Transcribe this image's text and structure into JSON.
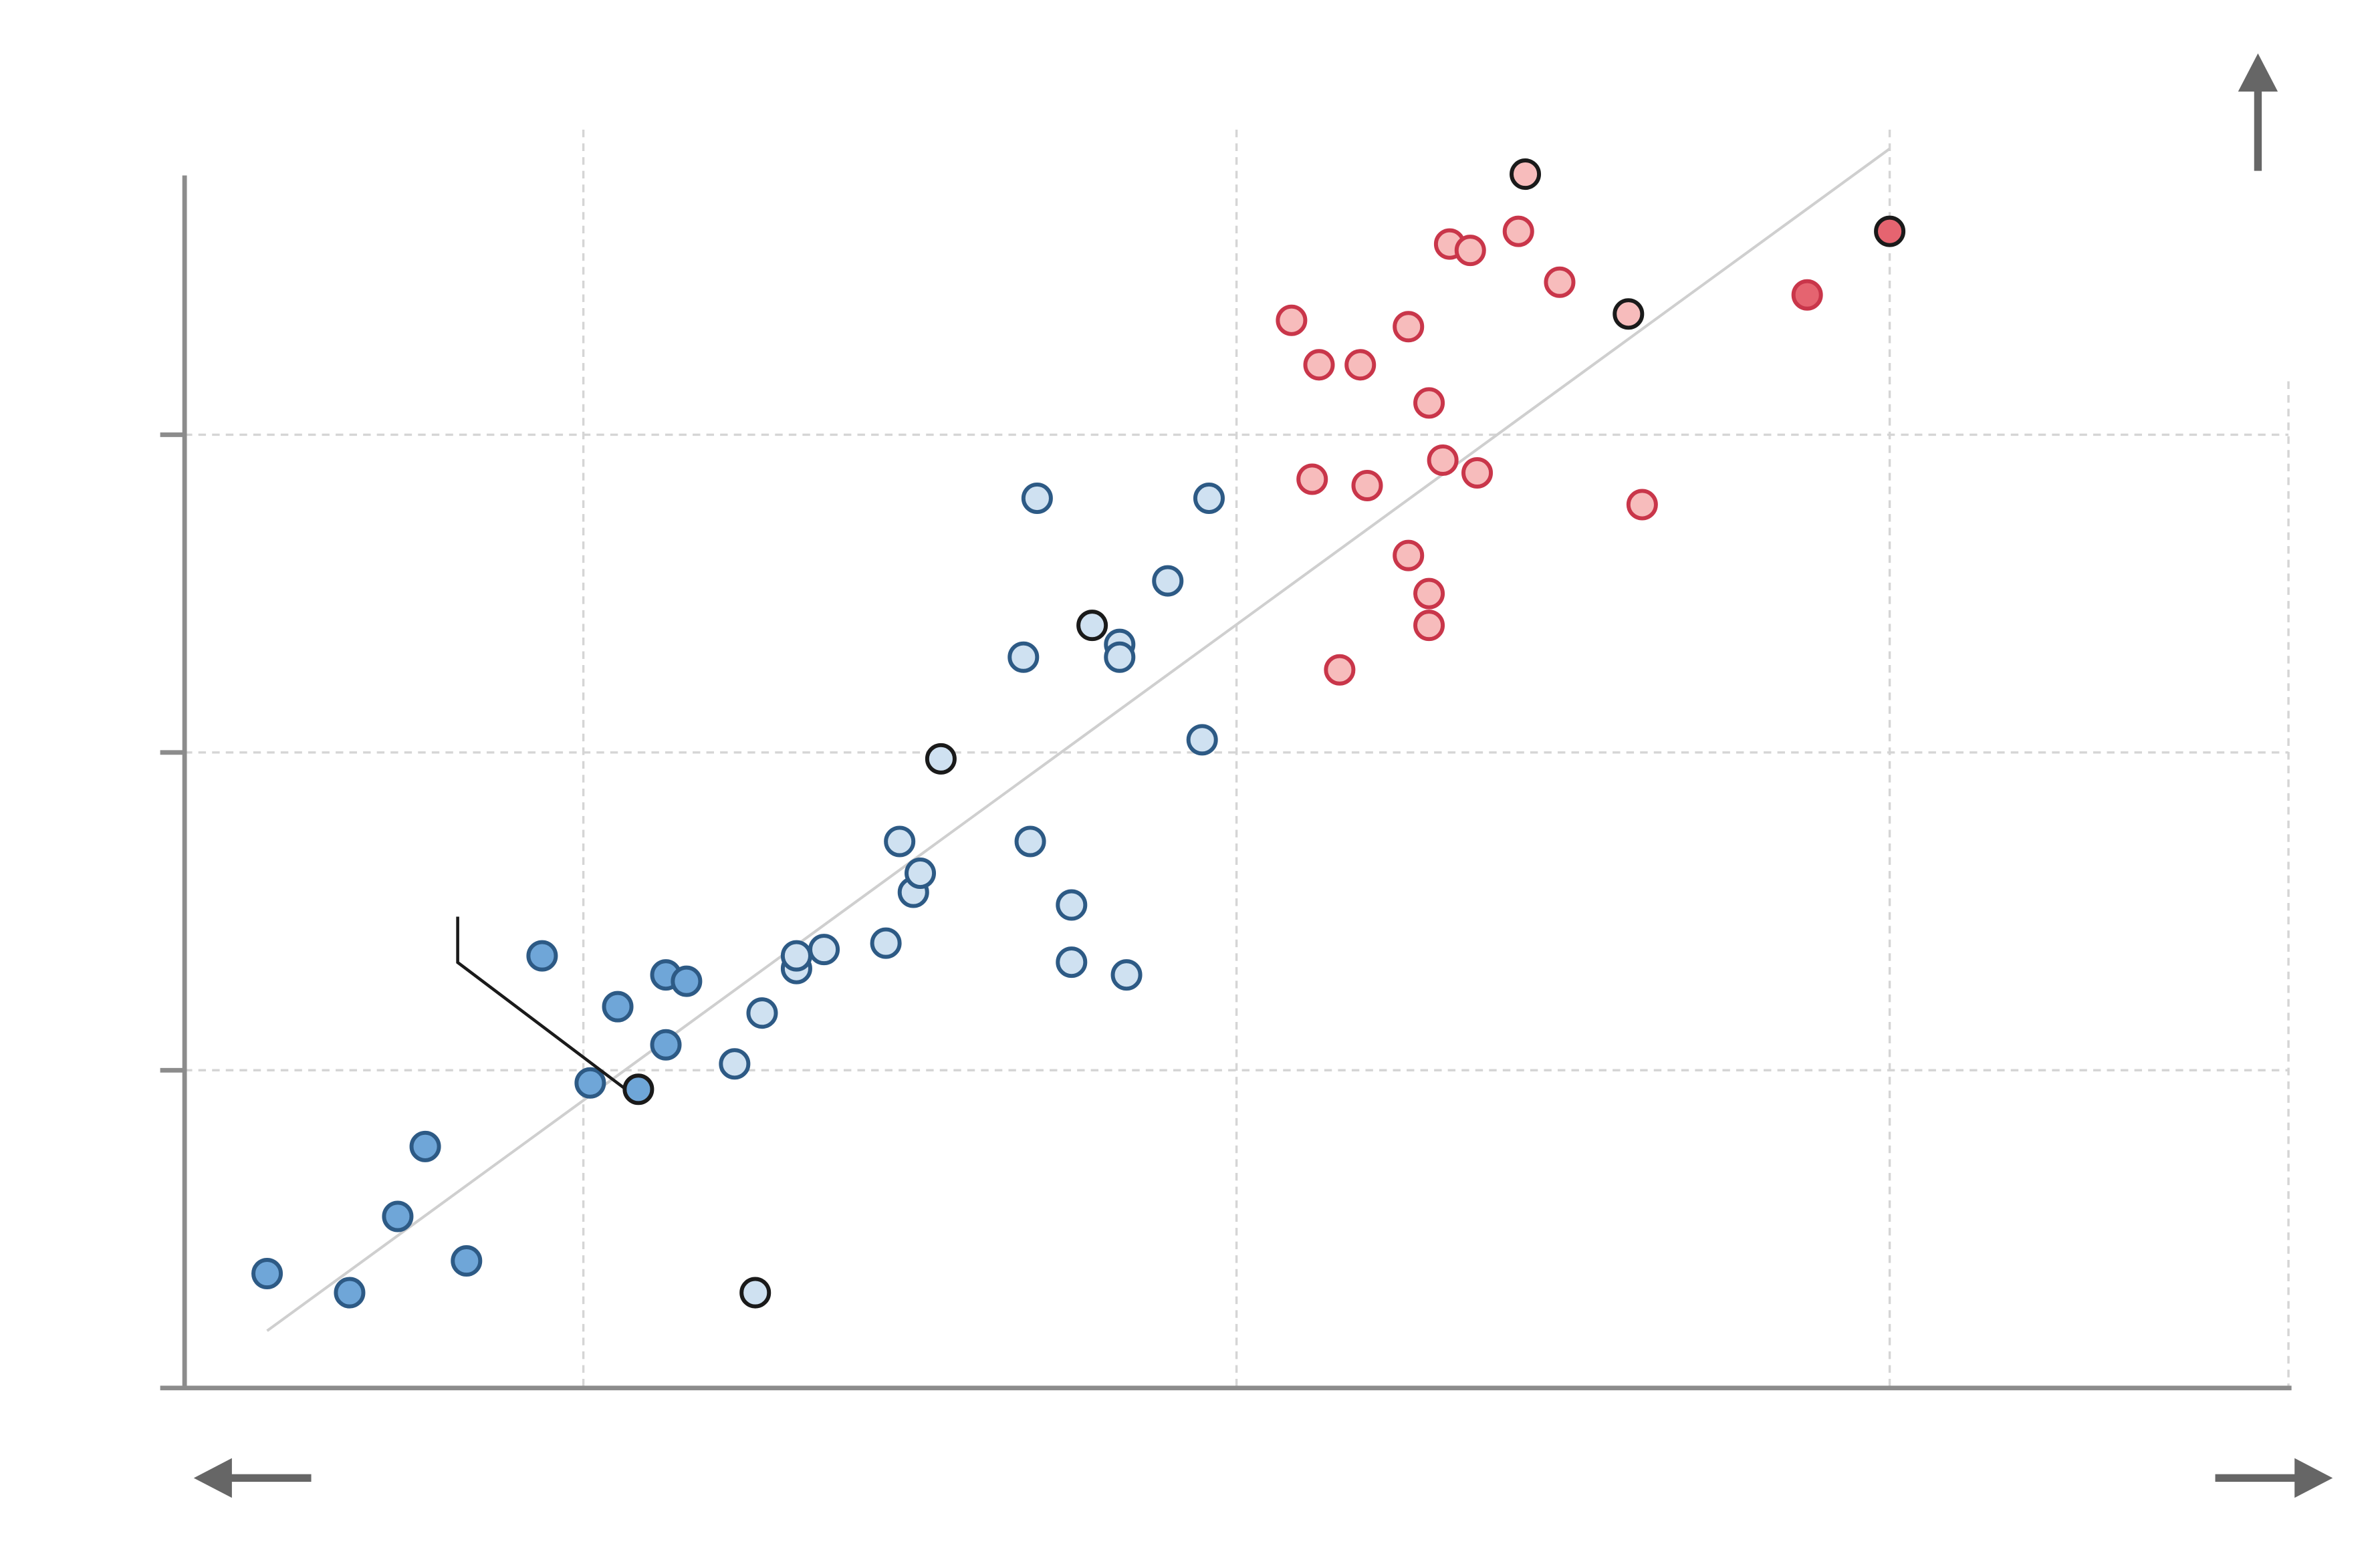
{
  "chart_data": {
    "type": "scatter",
    "title": "",
    "xlabel": "",
    "ylabel": "",
    "xlim": [
      0,
      30.6
    ],
    "ylim": [
      0,
      19.2
    ],
    "grid": true,
    "x_grid": [
      5.8,
      15.3,
      24.8,
      30.6
    ],
    "y_grid": [
      5.0,
      10.0,
      15.0
    ],
    "trend_line": {
      "x": [
        1.2,
        24.8
      ],
      "y": [
        0.9,
        19.5
      ]
    },
    "colors": {
      "blue_dark_fill": "#6fa6d8",
      "blue_light_fill": "#cfe1f1",
      "blue_edge": "#2d5a85",
      "red_light_fill": "#f7bcbc",
      "red_dark_fill": "#e56470",
      "red_edge": "#c9364a",
      "highlight_edge": "#1a1a1a",
      "grid": "#d5d5d5",
      "axis": "#8c8c8c",
      "trend": "#cfcfcf",
      "arrow": "#666666"
    },
    "series": [
      {
        "style": "blue_dark",
        "points": [
          {
            "x": 1.2,
            "y": 1.8
          },
          {
            "x": 2.4,
            "y": 1.5
          },
          {
            "x": 3.1,
            "y": 2.7
          },
          {
            "x": 3.5,
            "y": 3.8
          },
          {
            "x": 4.1,
            "y": 2.0
          },
          {
            "x": 5.2,
            "y": 6.8
          },
          {
            "x": 5.9,
            "y": 4.8
          },
          {
            "x": 6.3,
            "y": 6.0
          },
          {
            "x": 7.0,
            "y": 6.5
          },
          {
            "x": 7.3,
            "y": 6.4
          },
          {
            "x": 7.0,
            "y": 5.4
          }
        ]
      },
      {
        "style": "blue_light",
        "points": [
          {
            "x": 8.0,
            "y": 5.1
          },
          {
            "x": 8.4,
            "y": 5.9
          },
          {
            "x": 8.9,
            "y": 6.6
          },
          {
            "x": 8.9,
            "y": 6.8
          },
          {
            "x": 9.3,
            "y": 6.9
          },
          {
            "x": 10.2,
            "y": 7.0
          },
          {
            "x": 10.4,
            "y": 8.6
          },
          {
            "x": 10.6,
            "y": 7.8
          },
          {
            "x": 10.7,
            "y": 8.1
          },
          {
            "x": 12.2,
            "y": 11.5
          },
          {
            "x": 12.4,
            "y": 14.0
          },
          {
            "x": 12.3,
            "y": 8.6
          },
          {
            "x": 12.9,
            "y": 7.6
          },
          {
            "x": 12.9,
            "y": 6.7
          },
          {
            "x": 13.6,
            "y": 11.7
          },
          {
            "x": 13.6,
            "y": 11.5
          },
          {
            "x": 13.7,
            "y": 6.5
          },
          {
            "x": 14.3,
            "y": 12.7
          },
          {
            "x": 14.8,
            "y": 10.2
          },
          {
            "x": 14.9,
            "y": 14.0
          }
        ]
      },
      {
        "style": "red_light",
        "points": [
          {
            "x": 16.1,
            "y": 16.8
          },
          {
            "x": 16.5,
            "y": 16.1
          },
          {
            "x": 16.4,
            "y": 14.3
          },
          {
            "x": 16.8,
            "y": 11.3
          },
          {
            "x": 17.1,
            "y": 16.1
          },
          {
            "x": 17.2,
            "y": 14.2
          },
          {
            "x": 17.8,
            "y": 13.1
          },
          {
            "x": 17.8,
            "y": 16.7
          },
          {
            "x": 18.1,
            "y": 15.5
          },
          {
            "x": 18.1,
            "y": 12.5
          },
          {
            "x": 18.1,
            "y": 12.0
          },
          {
            "x": 18.3,
            "y": 14.6
          },
          {
            "x": 18.4,
            "y": 18.0
          },
          {
            "x": 18.7,
            "y": 17.9
          },
          {
            "x": 18.8,
            "y": 14.4
          },
          {
            "x": 19.4,
            "y": 18.2
          },
          {
            "x": 20.0,
            "y": 17.4
          },
          {
            "x": 21.2,
            "y": 13.9
          }
        ]
      },
      {
        "style": "red_dark",
        "points": [
          {
            "x": 23.6,
            "y": 17.2
          }
        ]
      },
      {
        "style": "highlight",
        "points": [
          {
            "x": 6.6,
            "y": 4.7,
            "fill": "blue_dark"
          },
          {
            "x": 8.3,
            "y": 1.5,
            "fill": "blue_light"
          },
          {
            "x": 11.0,
            "y": 9.9,
            "fill": "blue_light"
          },
          {
            "x": 13.2,
            "y": 12.0,
            "fill": "blue_light"
          },
          {
            "x": 19.5,
            "y": 19.1,
            "fill": "red_light"
          },
          {
            "x": 21.0,
            "y": 16.9,
            "fill": "red_light"
          },
          {
            "x": 24.8,
            "y": 18.2,
            "fill": "red_dark"
          }
        ]
      }
    ]
  }
}
